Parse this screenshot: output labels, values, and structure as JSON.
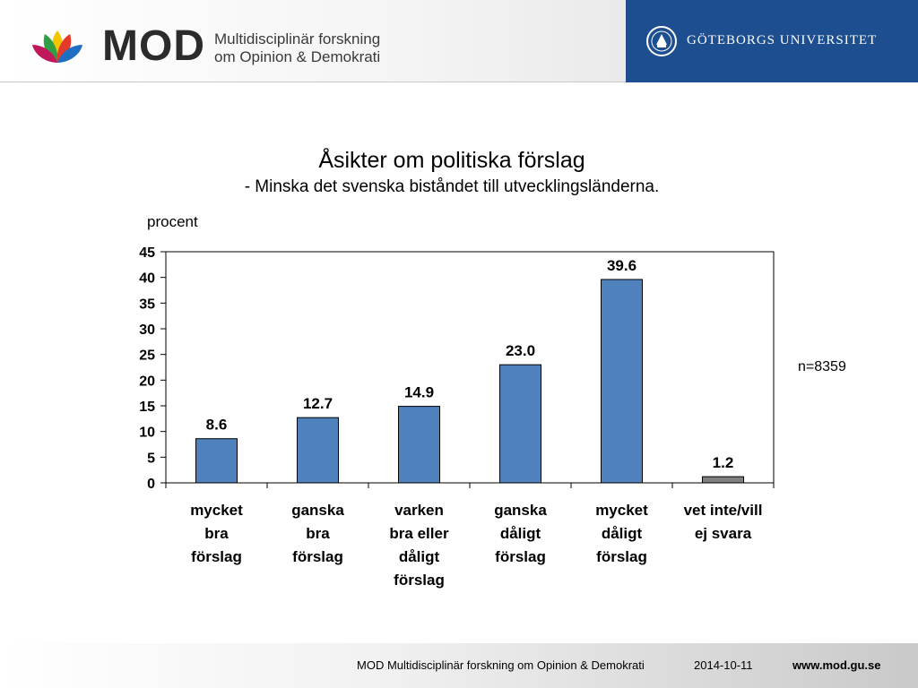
{
  "header": {
    "logo_word": "MOD",
    "logo_sub_line1": "Multidisciplinär forskning",
    "logo_sub_line2": "om Opinion & Demokrati",
    "university": "GÖTEBORGS UNIVERSITET",
    "brand_blue": "#1d4e8f"
  },
  "chart_data": {
    "type": "bar",
    "title": "Åsikter om politiska förslag",
    "subtitle": "- Minska det svenska biståndet till utvecklingsländerna.",
    "ylabel": "procent",
    "xlabel": "",
    "ylim": [
      0,
      45
    ],
    "yticks": [
      0,
      5,
      10,
      15,
      20,
      25,
      30,
      35,
      40,
      45
    ],
    "categories": [
      [
        "mycket",
        "bra",
        "förslag"
      ],
      [
        "ganska",
        "bra",
        "förslag"
      ],
      [
        "varken",
        "bra eller",
        "dåligt",
        "förslag"
      ],
      [
        "ganska",
        "dåligt",
        "förslag"
      ],
      [
        "mycket",
        "dåligt",
        "förslag"
      ],
      [
        "vet inte/vill",
        "ej svara"
      ]
    ],
    "values": [
      8.6,
      12.7,
      14.9,
      23.0,
      39.6,
      1.2
    ],
    "value_labels": [
      "8.6",
      "12.7",
      "14.9",
      "23.0",
      "39.6",
      "1.2"
    ],
    "bar_colors": [
      "#4f81bd",
      "#4f81bd",
      "#4f81bd",
      "#4f81bd",
      "#4f81bd",
      "#808080"
    ],
    "grid": false,
    "legend": "none"
  },
  "note": "n=8359",
  "footer": {
    "org": "MOD Multidisciplinär forskning om Opinion & Demokrati",
    "date": "2014-10-11",
    "url": "www.mod.gu.se"
  }
}
